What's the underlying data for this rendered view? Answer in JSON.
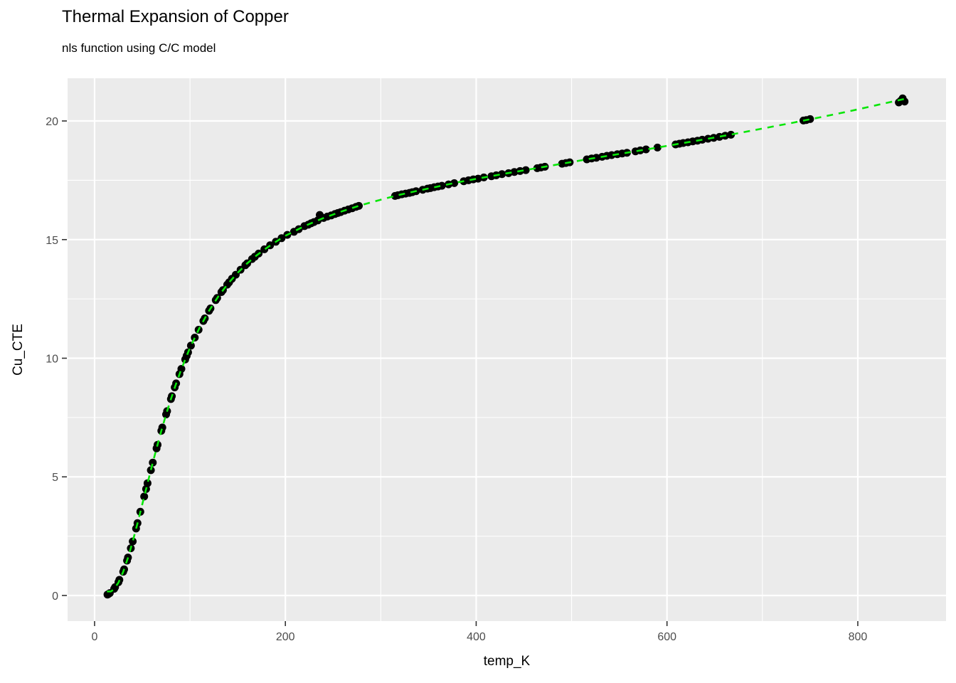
{
  "chart_data": {
    "type": "scatter",
    "title": "Thermal Expansion of Copper",
    "subtitle": "nls function using C/C model",
    "xlabel": "temp_K",
    "ylabel": "Cu_CTE",
    "x_ticks": [
      0,
      200,
      400,
      600,
      800
    ],
    "y_ticks": [
      0,
      5,
      10,
      15,
      20
    ],
    "xlim": [
      -28.3,
      892.5
    ],
    "ylim": [
      -1.08,
      21.8
    ],
    "grid": "white major and minor gridlines on grey panel",
    "legend": "none",
    "style": {
      "panel_bg": "#EBEBEB",
      "grid_color": "#FFFFFF",
      "tick_color": "#333333",
      "tick_label_color": "#4D4D4D",
      "point_color": "#000000",
      "line_color": "#0AE60A",
      "line_style": "dashed"
    },
    "series": [
      {
        "name": "observed CTE of copper",
        "kind": "points",
        "color": "#000000",
        "points": [
          [
            13.5,
            0.04
          ],
          [
            14.5,
            0.06
          ],
          [
            16,
            0.1
          ],
          [
            20.5,
            0.28
          ],
          [
            21.5,
            0.35
          ],
          [
            25,
            0.56
          ],
          [
            26,
            0.66
          ],
          [
            30,
            1.0
          ],
          [
            31,
            1.1
          ],
          [
            34,
            1.47
          ],
          [
            35,
            1.6
          ],
          [
            38,
            1.99
          ],
          [
            40,
            2.28
          ],
          [
            43.5,
            2.82
          ],
          [
            45,
            3.05
          ],
          [
            48,
            3.53
          ],
          [
            52,
            4.17
          ],
          [
            54,
            4.49
          ],
          [
            55.5,
            4.73
          ],
          [
            59,
            5.28
          ],
          [
            61,
            5.6
          ],
          [
            65,
            6.2
          ],
          [
            66,
            6.35
          ],
          [
            70,
            6.94
          ],
          [
            71,
            7.08
          ],
          [
            75,
            7.63
          ],
          [
            76,
            7.77
          ],
          [
            80,
            8.28
          ],
          [
            81,
            8.4
          ],
          [
            84,
            8.77
          ],
          [
            85.5,
            8.94
          ],
          [
            89,
            9.33
          ],
          [
            91,
            9.55
          ],
          [
            95,
            9.95
          ],
          [
            96.5,
            10.1
          ],
          [
            98,
            10.25
          ],
          [
            101,
            10.53
          ],
          [
            105,
            10.87
          ],
          [
            109,
            11.2
          ],
          [
            114,
            11.57
          ],
          [
            115.5,
            11.68
          ],
          [
            120,
            12.0
          ],
          [
            121.5,
            12.1
          ],
          [
            127,
            12.45
          ],
          [
            128.5,
            12.54
          ],
          [
            133,
            12.79
          ],
          [
            134.5,
            12.87
          ],
          [
            139,
            13.1
          ],
          [
            141,
            13.2
          ],
          [
            144,
            13.35
          ],
          [
            148,
            13.52
          ],
          [
            153,
            13.73
          ],
          [
            158,
            13.92
          ],
          [
            160,
            14.0
          ],
          [
            165,
            14.18
          ],
          [
            168,
            14.28
          ],
          [
            172,
            14.41
          ],
          [
            178,
            14.59
          ],
          [
            184,
            14.76
          ],
          [
            190,
            14.91
          ],
          [
            196,
            15.06
          ],
          [
            202,
            15.2
          ],
          [
            209,
            15.33
          ],
          [
            214,
            15.44
          ],
          [
            220,
            15.57
          ],
          [
            224,
            15.63
          ],
          [
            227,
            15.69
          ],
          [
            230,
            15.74
          ],
          [
            234,
            15.81
          ],
          [
            236,
            16.04
          ],
          [
            240,
            15.91
          ],
          [
            244,
            15.97
          ],
          [
            248,
            16.02
          ],
          [
            252,
            16.08
          ],
          [
            255,
            16.12
          ],
          [
            258,
            16.16
          ],
          [
            262,
            16.22
          ],
          [
            266,
            16.27
          ],
          [
            270,
            16.32
          ],
          [
            274,
            16.38
          ],
          [
            277,
            16.42
          ],
          [
            315,
            16.84
          ],
          [
            318,
            16.87
          ],
          [
            322,
            16.91
          ],
          [
            326,
            16.94
          ],
          [
            330,
            16.97
          ],
          [
            333,
            17.0
          ],
          [
            337,
            17.04
          ],
          [
            344,
            17.1
          ],
          [
            349,
            17.15
          ],
          [
            352,
            17.17
          ],
          [
            356,
            17.21
          ],
          [
            360,
            17.24
          ],
          [
            364,
            17.27
          ],
          [
            371,
            17.33
          ],
          [
            377,
            17.38
          ],
          [
            387,
            17.46
          ],
          [
            392,
            17.5
          ],
          [
            397,
            17.54
          ],
          [
            402,
            17.57
          ],
          [
            408,
            17.62
          ],
          [
            416,
            17.67
          ],
          [
            421,
            17.71
          ],
          [
            427,
            17.76
          ],
          [
            434,
            17.8
          ],
          [
            440,
            17.85
          ],
          [
            446,
            17.89
          ],
          [
            452,
            17.93
          ],
          [
            464,
            18.01
          ],
          [
            468,
            18.04
          ],
          [
            472,
            18.07
          ],
          [
            490,
            18.2
          ],
          [
            494,
            18.23
          ],
          [
            498,
            18.26
          ],
          [
            516,
            18.38
          ],
          [
            521,
            18.42
          ],
          [
            526,
            18.45
          ],
          [
            532,
            18.49
          ],
          [
            537,
            18.53
          ],
          [
            542,
            18.56
          ],
          [
            548,
            18.6
          ],
          [
            553,
            18.63
          ],
          [
            558,
            18.66
          ],
          [
            567,
            18.72
          ],
          [
            572,
            18.76
          ],
          [
            578,
            18.8
          ],
          [
            590,
            18.88
          ],
          [
            609,
            19.01
          ],
          [
            613,
            19.04
          ],
          [
            617,
            19.07
          ],
          [
            622,
            19.1
          ],
          [
            627,
            19.14
          ],
          [
            632,
            19.17
          ],
          [
            637,
            19.21
          ],
          [
            643,
            19.25
          ],
          [
            649,
            19.29
          ],
          [
            655,
            19.33
          ],
          [
            661,
            19.38
          ],
          [
            667,
            19.42
          ],
          [
            743,
            20.02
          ],
          [
            746,
            20.04
          ],
          [
            750,
            20.08
          ],
          [
            843,
            20.78
          ],
          [
            845,
            20.85
          ],
          [
            847,
            20.95
          ],
          [
            849,
            20.82
          ]
        ]
      },
      {
        "name": "nls fit, rational cubic/cubic (C/C) model",
        "kind": "dashed-line",
        "color": "#0AE60A",
        "points": [
          [
            13,
            0.17
          ],
          [
            17,
            0.17
          ],
          [
            20,
            0.25
          ],
          [
            25,
            0.54
          ],
          [
            30,
            1.0
          ],
          [
            35,
            1.59
          ],
          [
            40,
            2.28
          ],
          [
            45,
            3.04
          ],
          [
            50,
            3.84
          ],
          [
            55,
            4.64
          ],
          [
            60,
            5.44
          ],
          [
            65,
            6.2
          ],
          [
            70,
            6.94
          ],
          [
            75,
            7.63
          ],
          [
            80,
            8.28
          ],
          [
            85,
            8.88
          ],
          [
            90,
            9.44
          ],
          [
            95,
            9.95
          ],
          [
            100,
            10.44
          ],
          [
            110,
            11.28
          ],
          [
            120,
            12.0
          ],
          [
            130,
            12.62
          ],
          [
            140,
            13.15
          ],
          [
            150,
            13.6
          ],
          [
            160,
            14.0
          ],
          [
            170,
            14.34
          ],
          [
            180,
            14.64
          ],
          [
            190,
            14.91
          ],
          [
            200,
            15.16
          ],
          [
            220,
            15.57
          ],
          [
            240,
            15.91
          ],
          [
            260,
            16.2
          ],
          [
            280,
            16.46
          ],
          [
            300,
            16.68
          ],
          [
            320,
            16.89
          ],
          [
            340,
            17.07
          ],
          [
            360,
            17.24
          ],
          [
            380,
            17.41
          ],
          [
            400,
            17.56
          ],
          [
            430,
            17.78
          ],
          [
            460,
            17.99
          ],
          [
            490,
            18.2
          ],
          [
            520,
            18.41
          ],
          [
            550,
            18.61
          ],
          [
            580,
            18.81
          ],
          [
            610,
            19.02
          ],
          [
            640,
            19.23
          ],
          [
            670,
            19.45
          ],
          [
            700,
            19.68
          ],
          [
            730,
            19.91
          ],
          [
            760,
            20.15
          ],
          [
            790,
            20.4
          ],
          [
            820,
            20.67
          ],
          [
            849,
            20.93
          ]
        ]
      }
    ]
  }
}
